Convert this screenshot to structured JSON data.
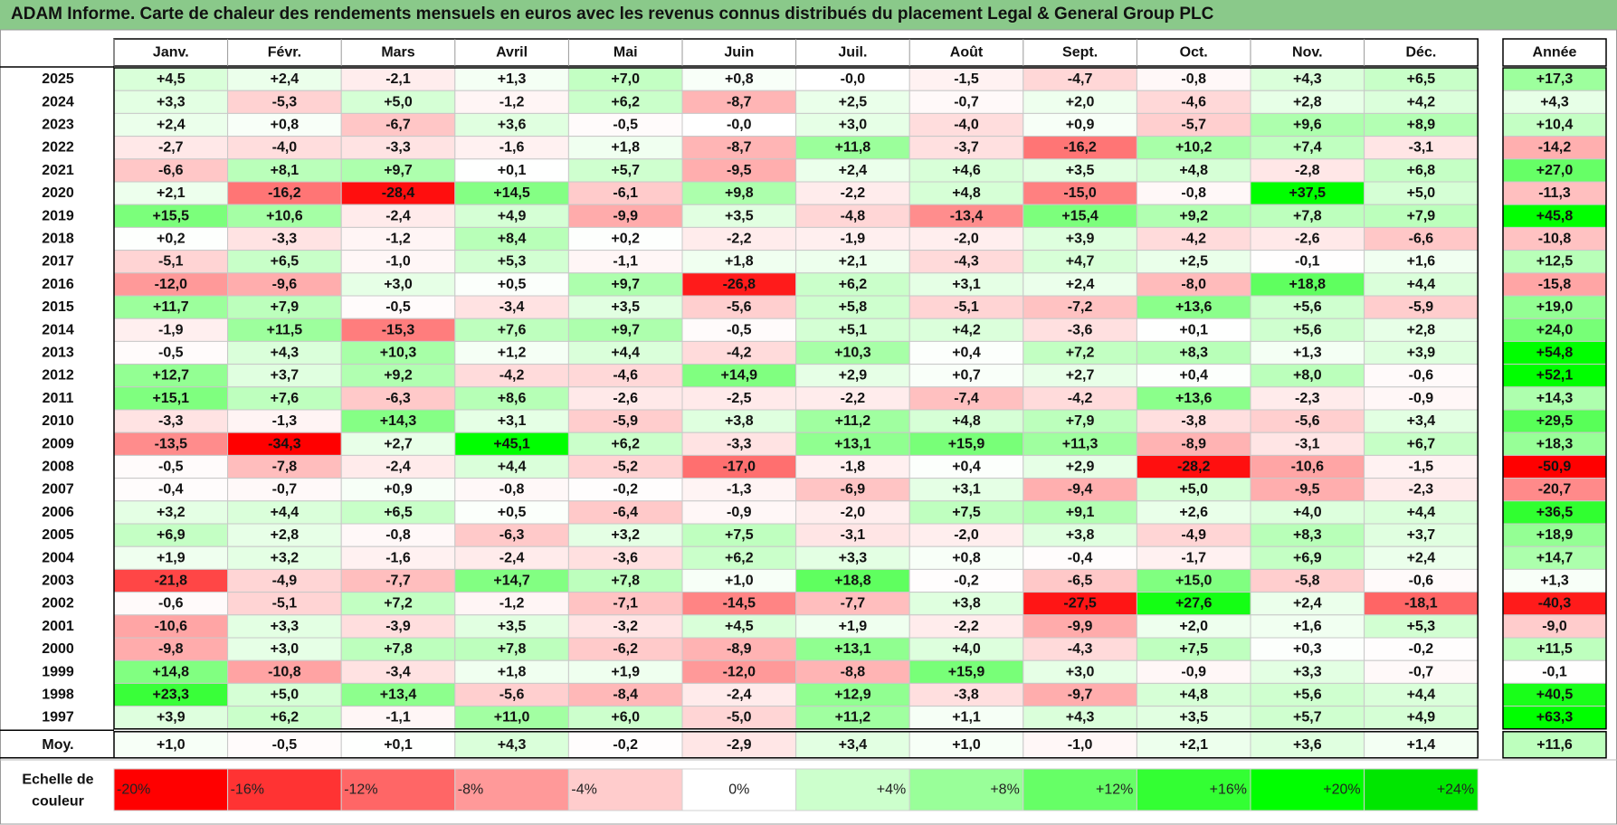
{
  "title": "ADAM Informe. Carte de chaleur des rendements mensuels en euros avec les revenus connus distribués du placement Legal & General Group PLC",
  "chart_data": {
    "type": "heatmap",
    "months": [
      "Janv.",
      "Févr.",
      "Mars",
      "Avril",
      "Mai",
      "Juin",
      "Juil.",
      "Août",
      "Sept.",
      "Oct.",
      "Nov.",
      "Déc."
    ],
    "annual_header": "Année",
    "rows": [
      {
        "year": "2025",
        "values": [
          4.5,
          2.4,
          -2.1,
          1.3,
          7.0,
          0.8,
          -0.0,
          -1.5,
          -4.7,
          -0.8,
          4.3,
          6.5
        ],
        "annual": 17.3
      },
      {
        "year": "2024",
        "values": [
          3.3,
          -5.3,
          5.0,
          -1.2,
          6.2,
          -8.7,
          2.5,
          -0.7,
          2.0,
          -4.6,
          2.8,
          4.2
        ],
        "annual": 4.3
      },
      {
        "year": "2023",
        "values": [
          2.4,
          0.8,
          -6.7,
          3.6,
          -0.5,
          -0.0,
          3.0,
          -4.0,
          0.9,
          -5.7,
          9.6,
          8.9
        ],
        "annual": 10.4
      },
      {
        "year": "2022",
        "values": [
          -2.7,
          -4.0,
          -3.3,
          -1.6,
          1.8,
          -8.7,
          11.8,
          -3.7,
          -16.2,
          10.2,
          7.4,
          -3.1
        ],
        "annual": -14.2
      },
      {
        "year": "2021",
        "values": [
          -6.6,
          8.1,
          9.7,
          0.1,
          5.7,
          -9.5,
          2.4,
          4.6,
          3.5,
          4.8,
          -2.8,
          6.8
        ],
        "annual": 27.0
      },
      {
        "year": "2020",
        "values": [
          2.1,
          -16.2,
          -28.4,
          14.5,
          -6.1,
          9.8,
          -2.2,
          4.8,
          -15.0,
          -0.8,
          37.5,
          5.0
        ],
        "annual": -11.3
      },
      {
        "year": "2019",
        "values": [
          15.5,
          10.6,
          -2.4,
          4.9,
          -9.9,
          3.5,
          -4.8,
          -13.4,
          15.4,
          9.2,
          7.8,
          7.9
        ],
        "annual": 45.8
      },
      {
        "year": "2018",
        "values": [
          0.2,
          -3.3,
          -1.2,
          8.4,
          0.2,
          -2.2,
          -1.9,
          -2.0,
          3.9,
          -4.2,
          -2.6,
          -6.6
        ],
        "annual": -10.8
      },
      {
        "year": "2017",
        "values": [
          -5.1,
          6.5,
          -1.0,
          5.3,
          -1.1,
          1.8,
          2.1,
          -4.3,
          4.7,
          2.5,
          -0.1,
          1.6
        ],
        "annual": 12.5
      },
      {
        "year": "2016",
        "values": [
          -12.0,
          -9.6,
          3.0,
          0.5,
          9.7,
          -26.8,
          6.2,
          3.1,
          2.4,
          -8.0,
          18.8,
          4.4
        ],
        "annual": -15.8
      },
      {
        "year": "2015",
        "values": [
          11.7,
          7.9,
          -0.5,
          -3.4,
          3.5,
          -5.6,
          5.8,
          -5.1,
          -7.2,
          13.6,
          5.6,
          -5.9
        ],
        "annual": 19.0
      },
      {
        "year": "2014",
        "values": [
          -1.9,
          11.5,
          -15.3,
          7.6,
          9.7,
          -0.5,
          5.1,
          4.2,
          -3.6,
          0.1,
          5.6,
          2.8
        ],
        "annual": 24.0
      },
      {
        "year": "2013",
        "values": [
          -0.5,
          4.3,
          10.3,
          1.2,
          4.4,
          -4.2,
          10.3,
          0.4,
          7.2,
          8.3,
          1.3,
          3.9
        ],
        "annual": 54.8
      },
      {
        "year": "2012",
        "values": [
          12.7,
          3.7,
          9.2,
          -4.2,
          -4.6,
          14.9,
          2.9,
          0.7,
          2.7,
          0.4,
          8.0,
          -0.6
        ],
        "annual": 52.1
      },
      {
        "year": "2011",
        "values": [
          15.1,
          7.6,
          -6.3,
          8.6,
          -2.6,
          -2.5,
          -2.2,
          -7.4,
          -4.2,
          13.6,
          -2.3,
          -0.9
        ],
        "annual": 14.3
      },
      {
        "year": "2010",
        "values": [
          -3.3,
          -1.3,
          14.3,
          3.1,
          -5.9,
          3.8,
          11.2,
          4.8,
          7.9,
          -3.8,
          -5.6,
          3.4
        ],
        "annual": 29.5
      },
      {
        "year": "2009",
        "values": [
          -13.5,
          -34.3,
          2.7,
          45.1,
          6.2,
          -3.3,
          13.1,
          15.9,
          11.3,
          -8.9,
          -3.1,
          6.7
        ],
        "annual": 18.3
      },
      {
        "year": "2008",
        "values": [
          -0.5,
          -7.8,
          -2.4,
          4.4,
          -5.2,
          -17.0,
          -1.8,
          0.4,
          2.9,
          -28.2,
          -10.6,
          -1.5
        ],
        "annual": -50.9
      },
      {
        "year": "2007",
        "values": [
          -0.4,
          -0.7,
          0.9,
          -0.8,
          -0.2,
          -1.3,
          -6.9,
          3.1,
          -9.4,
          5.0,
          -9.5,
          -2.3
        ],
        "annual": -20.7
      },
      {
        "year": "2006",
        "values": [
          3.2,
          4.4,
          6.5,
          0.5,
          -6.4,
          -0.9,
          -2.0,
          7.5,
          9.1,
          2.6,
          4.0,
          4.4
        ],
        "annual": 36.5
      },
      {
        "year": "2005",
        "values": [
          6.9,
          2.8,
          -0.8,
          -6.3,
          3.2,
          7.5,
          -3.1,
          -2.0,
          3.8,
          -4.9,
          8.3,
          3.7
        ],
        "annual": 18.9
      },
      {
        "year": "2004",
        "values": [
          1.9,
          3.2,
          -1.6,
          -2.4,
          -3.6,
          6.2,
          3.3,
          0.8,
          -0.4,
          -1.7,
          6.9,
          2.4
        ],
        "annual": 14.7
      },
      {
        "year": "2003",
        "values": [
          -21.8,
          -4.9,
          -7.7,
          14.7,
          7.8,
          1.0,
          18.8,
          -0.2,
          -6.5,
          15.0,
          -5.8,
          -0.6
        ],
        "annual": 1.3
      },
      {
        "year": "2002",
        "values": [
          -0.6,
          -5.1,
          7.2,
          -1.2,
          -7.1,
          -14.5,
          -7.7,
          3.8,
          -27.5,
          27.6,
          2.4,
          -18.1
        ],
        "annual": -40.3
      },
      {
        "year": "2001",
        "values": [
          -10.6,
          3.3,
          -3.9,
          3.5,
          -3.2,
          4.5,
          1.9,
          -2.2,
          -9.9,
          2.0,
          1.6,
          5.3
        ],
        "annual": -9.0
      },
      {
        "year": "2000",
        "values": [
          -9.8,
          3.0,
          7.8,
          7.8,
          -6.2,
          -8.9,
          13.1,
          4.0,
          -4.3,
          7.5,
          0.3,
          -0.2
        ],
        "annual": 11.5
      },
      {
        "year": "1999",
        "values": [
          14.8,
          -10.8,
          -3.4,
          1.8,
          1.9,
          -12.0,
          -8.8,
          15.9,
          3.0,
          -0.9,
          3.3,
          -0.7
        ],
        "annual": -0.1
      },
      {
        "year": "1998",
        "values": [
          23.3,
          5.0,
          13.4,
          -5.6,
          -8.4,
          -2.4,
          12.9,
          -3.8,
          -9.7,
          4.8,
          5.6,
          4.4
        ],
        "annual": 40.5
      },
      {
        "year": "1997",
        "values": [
          3.9,
          6.2,
          -1.1,
          11.0,
          6.0,
          -5.0,
          11.2,
          1.1,
          4.3,
          3.5,
          5.7,
          4.9
        ],
        "annual": 63.3
      }
    ],
    "average": {
      "label": "Moy.",
      "values": [
        1.0,
        -0.5,
        0.1,
        4.3,
        -0.2,
        -2.9,
        3.4,
        1.0,
        -1.0,
        2.1,
        3.6,
        1.4
      ],
      "annual": 11.6
    },
    "scale_label_line1": "Echelle de",
    "scale_label_line2": "couleur",
    "scale": [
      {
        "label": "-20%",
        "value": -20,
        "color": "#ff0000"
      },
      {
        "label": "-16%",
        "value": -16,
        "color": "#ff3333"
      },
      {
        "label": "-12%",
        "value": -12,
        "color": "#ff6666"
      },
      {
        "label": "-8%",
        "value": -8,
        "color": "#ff9999"
      },
      {
        "label": "-4%",
        "value": -4,
        "color": "#ffcccc"
      },
      {
        "label": "0%",
        "value": 0,
        "color": "#ffffff"
      },
      {
        "label": "+4%",
        "value": 4,
        "color": "#ccffcc"
      },
      {
        "label": "+8%",
        "value": 8,
        "color": "#99ff99"
      },
      {
        "label": "+12%",
        "value": 12,
        "color": "#66ff66"
      },
      {
        "label": "+16%",
        "value": 16,
        "color": "#33ff33"
      },
      {
        "label": "+20%",
        "value": 20,
        "color": "#00ff00"
      },
      {
        "label": "+24%",
        "value": 24,
        "color": "#00e600"
      }
    ]
  }
}
